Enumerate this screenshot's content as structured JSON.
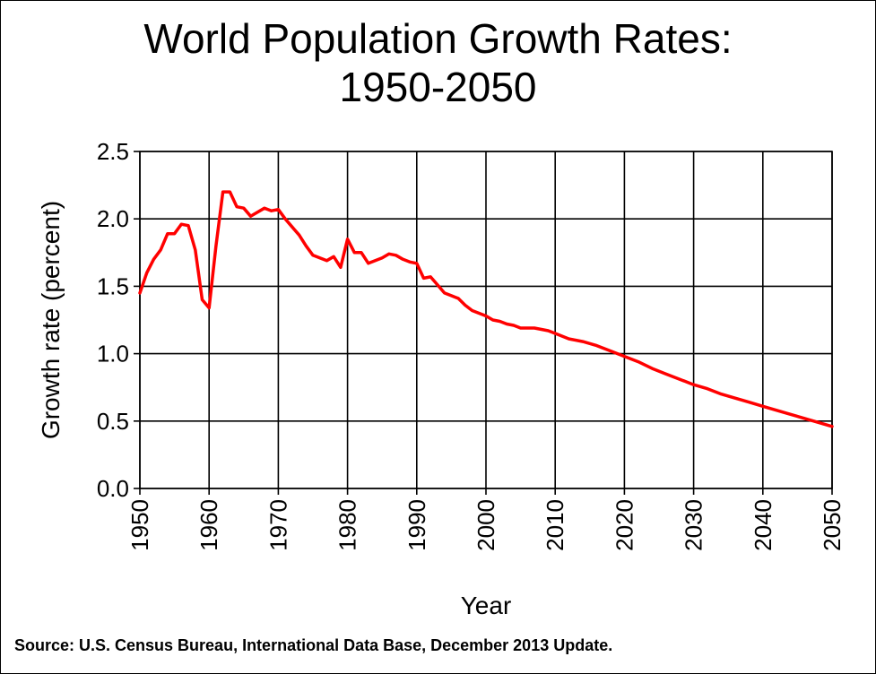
{
  "chart_data": {
    "type": "line",
    "title_line1": "World Population Growth Rates:",
    "title_line2": "1950-2050",
    "xlabel": "Year",
    "ylabel": "Growth rate (percent)",
    "xlim": [
      1950,
      2050
    ],
    "ylim": [
      0.0,
      2.5
    ],
    "x_ticks": [
      1950,
      1960,
      1970,
      1980,
      1990,
      2000,
      2010,
      2020,
      2030,
      2040,
      2050
    ],
    "x_tick_labels": [
      "1950",
      "1960",
      "1970",
      "1980",
      "1990",
      "2000",
      "2010",
      "2020",
      "2030",
      "2040",
      "2050"
    ],
    "y_ticks": [
      0.0,
      0.5,
      1.0,
      1.5,
      2.0,
      2.5
    ],
    "y_tick_labels": [
      "0.0",
      "0.5",
      "1.0",
      "1.5",
      "2.0",
      "2.5"
    ],
    "grid": true,
    "line_color": "#ff0000",
    "series": [
      {
        "name": "World population growth rate",
        "x": [
          1950,
          1951,
          1952,
          1953,
          1954,
          1955,
          1956,
          1957,
          1958,
          1959,
          1960,
          1961,
          1962,
          1963,
          1964,
          1965,
          1966,
          1967,
          1968,
          1969,
          1970,
          1971,
          1972,
          1973,
          1974,
          1975,
          1976,
          1977,
          1978,
          1979,
          1980,
          1981,
          1982,
          1983,
          1984,
          1985,
          1986,
          1987,
          1988,
          1989,
          1990,
          1991,
          1992,
          1993,
          1994,
          1995,
          1996,
          1997,
          1998,
          1999,
          2000,
          2001,
          2002,
          2003,
          2004,
          2005,
          2006,
          2007,
          2008,
          2009,
          2010,
          2012,
          2014,
          2016,
          2018,
          2020,
          2022,
          2024,
          2026,
          2028,
          2030,
          2032,
          2034,
          2036,
          2038,
          2040,
          2042,
          2044,
          2046,
          2048,
          2050
        ],
        "values": [
          1.45,
          1.6,
          1.7,
          1.77,
          1.89,
          1.89,
          1.96,
          1.95,
          1.77,
          1.4,
          1.34,
          1.8,
          2.2,
          2.2,
          2.09,
          2.08,
          2.02,
          2.05,
          2.08,
          2.06,
          2.07,
          2.0,
          1.94,
          1.88,
          1.8,
          1.73,
          1.71,
          1.69,
          1.72,
          1.64,
          1.85,
          1.75,
          1.75,
          1.67,
          1.69,
          1.71,
          1.74,
          1.73,
          1.7,
          1.68,
          1.67,
          1.56,
          1.57,
          1.51,
          1.45,
          1.43,
          1.41,
          1.36,
          1.32,
          1.3,
          1.28,
          1.25,
          1.24,
          1.22,
          1.21,
          1.19,
          1.19,
          1.19,
          1.18,
          1.17,
          1.15,
          1.11,
          1.09,
          1.06,
          1.02,
          0.98,
          0.94,
          0.89,
          0.85,
          0.81,
          0.77,
          0.74,
          0.7,
          0.67,
          0.64,
          0.61,
          0.58,
          0.55,
          0.52,
          0.49,
          0.46
        ]
      }
    ]
  },
  "footer": {
    "source": "Source: U.S. Census Bureau, International Data Base, December 2013 Update."
  }
}
